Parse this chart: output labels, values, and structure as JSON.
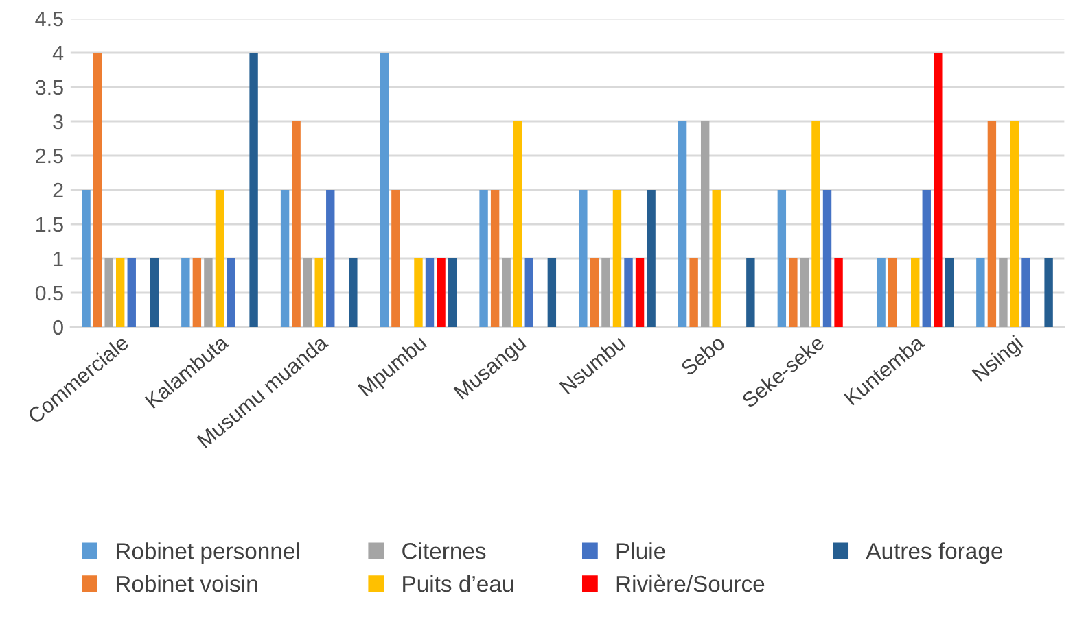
{
  "chart_data": {
    "type": "bar",
    "categories": [
      "Commerciale",
      "Kalambuta",
      "Musumu muanda",
      "Mpumbu",
      "Musangu",
      "Nsumbu",
      "Sebo",
      "Seke-seke",
      "Kuntemba",
      "Nsingi"
    ],
    "series": [
      {
        "name": "Robinet personnel",
        "color": "#5b9bd5",
        "values": [
          2,
          1,
          2,
          4,
          2,
          2,
          3,
          2,
          1,
          1
        ]
      },
      {
        "name": "Robinet voisin",
        "color": "#ed7d31",
        "values": [
          4,
          1,
          3,
          2,
          2,
          1,
          1,
          1,
          1,
          3
        ]
      },
      {
        "name": "Citernes",
        "color": "#a5a5a5",
        "values": [
          1,
          1,
          1,
          0,
          1,
          1,
          3,
          1,
          0,
          1
        ]
      },
      {
        "name": "Puits d’eau",
        "color": "#ffc000",
        "values": [
          1,
          2,
          1,
          1,
          3,
          2,
          2,
          3,
          1,
          3
        ]
      },
      {
        "name": "Pluie",
        "color": "#4472c4",
        "values": [
          1,
          1,
          2,
          1,
          1,
          1,
          0,
          2,
          2,
          1
        ]
      },
      {
        "name": "Rivière/Source",
        "color": "#ff0000",
        "values": [
          0,
          0,
          0,
          1,
          0,
          1,
          0,
          1,
          4,
          0
        ]
      },
      {
        "name": "Autres forage",
        "color": "#255e91",
        "values": [
          1,
          4,
          1,
          1,
          1,
          2,
          1,
          0,
          1,
          1
        ]
      }
    ],
    "ylim": [
      0,
      4.5
    ],
    "yticks": [
      0,
      0.5,
      1,
      1.5,
      2,
      2.5,
      3,
      3.5,
      4,
      4.5
    ],
    "grid": "y",
    "legend": "bottom"
  }
}
